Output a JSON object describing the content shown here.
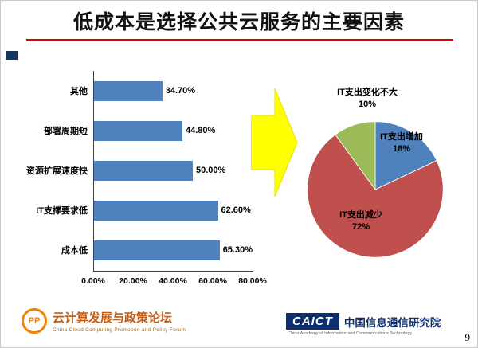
{
  "slide": {
    "title": "低成本是选择公共云服务的主要因素",
    "page_number": "9"
  },
  "footer": {
    "left_logo": {
      "monogram": "PP",
      "name": "云计算发展与政策论坛",
      "subtitle": "China Cloud Computing Promotion and Policy Forum"
    },
    "right_logo": {
      "acronym": "CAICT",
      "name": "中国信息通信研究院",
      "subtitle": "China Academy of Information and Communications Technology"
    }
  },
  "chart_data": [
    {
      "type": "bar",
      "orientation": "horizontal",
      "order": "top-to-bottom",
      "categories": [
        "其他",
        "部署周期短",
        "资源扩展速度快",
        "IT支撑要求低",
        "成本低"
      ],
      "values": [
        34.7,
        44.8,
        50.0,
        62.6,
        65.3
      ],
      "data_labels": [
        "34.70%",
        "44.80%",
        "50.00%",
        "62.60%",
        "65.30%"
      ],
      "x_ticks": [
        "0.00%",
        "20.00%",
        "40.00%",
        "60.00%",
        "80.00%"
      ],
      "xlim": [
        0,
        80
      ],
      "bar_color": "#4f81bd",
      "grid": false,
      "legend": "none"
    },
    {
      "type": "pie",
      "start_angle_deg": 0,
      "direction": "clockwise",
      "slices": [
        {
          "label": "IT支出增加",
          "pct_label": "18%",
          "value": 18,
          "color": "#4f81bd"
        },
        {
          "label": "IT支出减少",
          "pct_label": "72%",
          "value": 72,
          "color": "#c0504d"
        },
        {
          "label": "IT支出变化不大",
          "pct_label": "10%",
          "value": 10,
          "color": "#9bbb59"
        }
      ],
      "legend": "none"
    }
  ],
  "decor": {
    "arrow_color": "#ffff00",
    "underline_color": "#e60000"
  }
}
